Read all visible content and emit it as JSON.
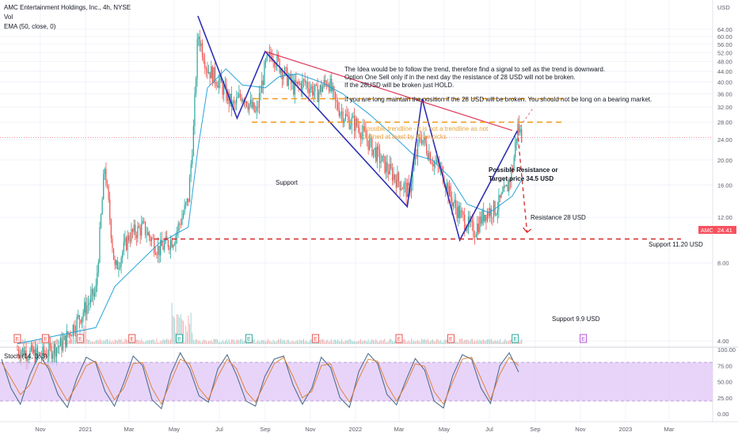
{
  "header": {
    "title": "AMC Entertainment Holdings, Inc., 4h, NYSE",
    "vol_label": "Vol",
    "ema_label": "EMA (50, close, 0)",
    "currency": "USD",
    "stoch_label": "Stoch (14, 3, 3)"
  },
  "price_tag": {
    "ticker": "AMC",
    "value": "24.41"
  },
  "chart_data": [
    {
      "type": "line",
      "title": "",
      "ylabel": "USD",
      "y_scale": "log",
      "ylim": [
        3.6,
        75
      ],
      "y_ticks": [
        "64.00",
        "60.00",
        "56.00",
        "52.00",
        "48.00",
        "44.00",
        "40.00",
        "36.00",
        "32.00",
        "28.00",
        "24.00",
        "20.00",
        "16.00",
        "12.00",
        "8.00",
        "4.00"
      ],
      "x_ticks": [
        "Nov",
        "2021",
        "Mar",
        "May",
        "Jul",
        "Sep",
        "Nov",
        "2022",
        "Mar",
        "May",
        "Jul",
        "Sep",
        "Nov",
        "2023",
        "Mar"
      ],
      "series": [
        {
          "role": "price",
          "x": [
            "2020-10-01",
            "2020-11-01",
            "2020-12-01",
            "2021-01-15",
            "2021-01-27",
            "2021-02-10",
            "2021-03-01",
            "2021-03-20",
            "2021-04-10",
            "2021-05-01",
            "2021-05-20",
            "2021-05-27",
            "2021-06-02",
            "2021-06-15",
            "2021-07-01",
            "2021-07-20",
            "2021-08-01",
            "2021-08-20",
            "2021-09-01",
            "2021-09-10",
            "2021-09-25",
            "2021-10-10",
            "2021-10-25",
            "2021-11-10",
            "2021-11-25",
            "2021-12-05",
            "2021-12-20",
            "2022-01-05",
            "2022-01-25",
            "2022-02-10",
            "2022-02-25",
            "2022-03-14",
            "2022-03-30",
            "2022-04-15",
            "2022-04-28",
            "2022-05-11",
            "2022-05-25",
            "2022-06-10",
            "2022-06-25",
            "2022-07-10",
            "2022-07-25",
            "2022-08-02",
            "2022-08-08",
            "2022-08-15"
          ],
          "values": [
            3.7,
            3.5,
            3.9,
            6.2,
            19.0,
            7.5,
            10.2,
            11.0,
            9.0,
            10.0,
            14.0,
            26.0,
            62.0,
            45.0,
            40.0,
            32.0,
            36.0,
            30.0,
            46.0,
            52.0,
            44.0,
            38.0,
            40.0,
            36.0,
            41.0,
            33.0,
            29.0,
            27.0,
            22.0,
            19.0,
            17.0,
            15.0,
            25.0,
            20.0,
            18.0,
            14.0,
            12.0,
            10.6,
            12.5,
            13.0,
            15.5,
            19.0,
            27.0,
            24.4
          ]
        },
        {
          "role": "ema",
          "name": "EMA (50, close, 0)",
          "x": [
            "2020-10-01",
            "2021-01-15",
            "2021-02-10",
            "2021-04-10",
            "2021-05-20",
            "2021-06-02",
            "2021-06-15",
            "2021-07-10",
            "2021-08-01",
            "2021-09-01",
            "2021-09-20",
            "2021-10-15",
            "2021-11-15",
            "2021-12-15",
            "2022-01-20",
            "2022-02-20",
            "2022-03-20",
            "2022-04-15",
            "2022-05-10",
            "2022-06-01",
            "2022-07-01",
            "2022-08-01",
            "2022-08-15"
          ],
          "values": [
            3.9,
            4.5,
            6.5,
            9.5,
            11.0,
            22.0,
            38.0,
            45.0,
            39.0,
            38.0,
            42.0,
            43.0,
            40.0,
            36.0,
            30.0,
            25.0,
            21.0,
            20.0,
            17.0,
            13.5,
            12.5,
            14.5,
            17.0
          ]
        }
      ],
      "drawings": {
        "pattern_zigzag": {
          "x": [
            "2021-06-02",
            "2021-07-25",
            "2021-09-01",
            "2022-03-12",
            "2022-04-01",
            "2022-05-22",
            "2022-08-08"
          ],
          "y": [
            72.0,
            29.0,
            52.5,
            13.2,
            34.5,
            9.8,
            26.0
          ]
        },
        "downtrend_line": {
          "x": [
            "2021-09-01",
            "2022-08-01"
          ],
          "y": [
            52.5,
            26.0
          ]
        },
        "resistance_345_level": 34.5,
        "resistance_28_level": 28,
        "support_99_level": 9.9,
        "projection": {
          "x": [
            "2022-08-08",
            "2022-08-21"
          ],
          "y": [
            26.0,
            10.5
          ]
        },
        "target_projection": {
          "x": [
            "2022-08-08",
            "2022-08-30"
          ],
          "y": [
            26.0,
            32.0
          ]
        }
      },
      "annotations": {
        "idea_lines": [
          "The Idea would be to follow the trend, therefore find a signal to sell as the trend is downward.",
          "Option One Sell only if in the next day the resistance of 28 USD will not be broken.",
          "If the 28USD will be broken just HOLD.",
          "",
          "If you are long maintain the position if the 28 USD will be broken. You should not be long on a bearing market."
        ],
        "trendline_note": [
          "possible trendline - it is not a trendline as not",
          "defined at least by three picks"
        ],
        "support_label": "Support",
        "possible_resistance": [
          "Possible Resistance or",
          "Target price 34.5 USD"
        ],
        "resistance_28": "Resistance 28 USD",
        "support_1120": "Support 11.20 USD",
        "support_99": "Support 9.9 USD"
      },
      "earnings_markers": [
        "E",
        "E",
        "E",
        "E",
        "E",
        "E",
        "E",
        "E",
        "E",
        "E",
        "E"
      ]
    },
    {
      "type": "line",
      "title": "",
      "name": "Stoch (14, 3, 3)",
      "ylim": [
        0,
        100
      ],
      "y_ticks": [
        "100.00",
        "75.00",
        "50.00",
        "25.00",
        "0.00"
      ],
      "band": [
        20,
        80
      ],
      "series": [
        {
          "name": "%K",
          "values": [
            85,
            40,
            15,
            60,
            92,
            70,
            30,
            10,
            55,
            88,
            80,
            35,
            12,
            48,
            90,
            75,
            22,
            8,
            62,
            95,
            70,
            28,
            18,
            70,
            92,
            60,
            20,
            12,
            58,
            85,
            90,
            45,
            15,
            40,
            88,
            72,
            25,
            10,
            66,
            94,
            78,
            30,
            14,
            52,
            86,
            68,
            20,
            9,
            60,
            92,
            85,
            40,
            16,
            75,
            95,
            65
          ]
        },
        {
          "name": "%D",
          "values": [
            80,
            55,
            30,
            45,
            80,
            75,
            45,
            20,
            45,
            75,
            82,
            50,
            22,
            40,
            78,
            80,
            40,
            15,
            50,
            85,
            78,
            40,
            22,
            58,
            85,
            70,
            35,
            18,
            48,
            78,
            88,
            58,
            25,
            35,
            75,
            78,
            40,
            18,
            55,
            85,
            82,
            45,
            20,
            45,
            78,
            74,
            35,
            15,
            50,
            85,
            88,
            55,
            22,
            62,
            88,
            75
          ]
        }
      ]
    }
  ]
}
